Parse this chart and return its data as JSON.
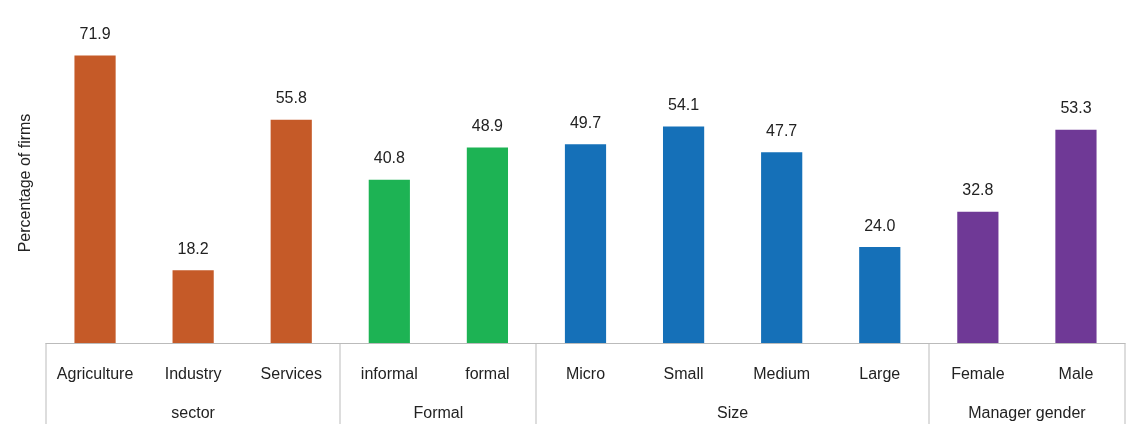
{
  "chart_data": {
    "type": "bar",
    "ylabel": "Percentage of firms",
    "categories": [
      "Agriculture",
      "Industry",
      "Services",
      "informal",
      "formal",
      "Micro",
      "Small",
      "Medium",
      "Large",
      "Female",
      "Male"
    ],
    "series": [
      {
        "color": "#c55a28",
        "values": [
          71.9,
          18.2,
          55.8,
          null,
          null,
          null,
          null,
          null,
          null,
          null,
          null
        ],
        "value_labels": [
          "71.9",
          "18.2",
          "55.8",
          null,
          null,
          null,
          null,
          null,
          null,
          null,
          null
        ]
      },
      {
        "color": "#1db354",
        "values": [
          null,
          null,
          null,
          40.8,
          48.9,
          null,
          null,
          null,
          null,
          null,
          null
        ],
        "value_labels": [
          null,
          null,
          null,
          "40.8",
          "48.9",
          null,
          null,
          null,
          null,
          null,
          null
        ]
      },
      {
        "color": "#1570b8",
        "values": [
          null,
          null,
          null,
          null,
          null,
          49.7,
          54.1,
          47.7,
          24.0,
          null,
          null
        ],
        "value_labels": [
          null,
          null,
          null,
          null,
          null,
          "49.7",
          "54.1",
          "47.7",
          "24.0",
          null,
          null
        ]
      },
      {
        "color": "#6f3996",
        "values": [
          null,
          null,
          null,
          null,
          null,
          null,
          null,
          null,
          null,
          32.8,
          53.3
        ],
        "value_labels": [
          null,
          null,
          null,
          null,
          null,
          null,
          null,
          null,
          null,
          "32.8",
          "53.3"
        ]
      }
    ],
    "annotations": [
      "sector",
      "Formal",
      "Size",
      "Manager gender"
    ],
    "grid": false
  }
}
